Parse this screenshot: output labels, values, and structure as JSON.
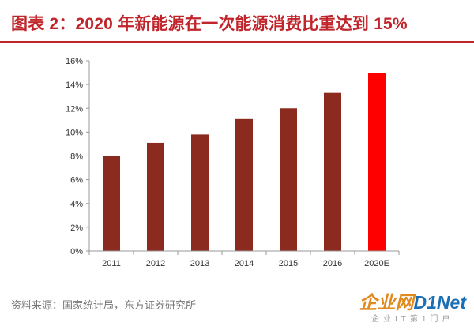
{
  "header": {
    "title": "图表 2：2020 年新能源在一次能源消费比重达到 15%"
  },
  "chart_data": {
    "type": "bar",
    "title": "图表 2：2020 年新能源在一次能源消费比重达到 15%",
    "categories": [
      "2011",
      "2012",
      "2013",
      "2014",
      "2015",
      "2016",
      "2020E"
    ],
    "values": [
      8.0,
      9.1,
      9.8,
      11.1,
      12.0,
      13.3,
      15.0
    ],
    "value_unit": "%",
    "ylim": [
      0,
      16
    ],
    "yticks": [
      "0%",
      "2%",
      "4%",
      "6%",
      "8%",
      "10%",
      "12%",
      "14%",
      "16%"
    ],
    "xlabel": "",
    "ylabel": "",
    "grid": false,
    "legend": "none",
    "colors": {
      "bar": "#8b2a1e",
      "highlight": "#ff0000",
      "axis": "#999999"
    },
    "highlight_index": 6
  },
  "footer": {
    "source": "资料来源：国家统计局，东方证券研究所"
  },
  "watermark": {
    "logo_main": "企业网",
    "logo_accent": "D1Net",
    "tagline": "企业IT第1门户"
  }
}
